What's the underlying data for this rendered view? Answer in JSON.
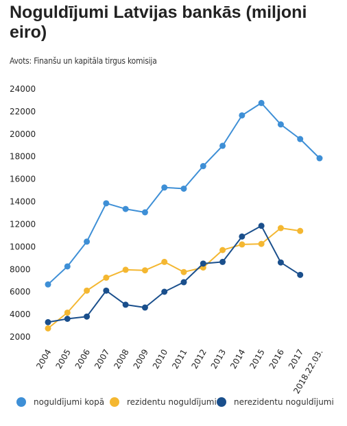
{
  "header": {
    "title": "Noguldījumi Latvijas bankās (miljoni eiro)",
    "source": "Avots: Finanšu un kapitāla tirgus komisija"
  },
  "chart_data": {
    "type": "line",
    "title": "Noguldījumi Latvijas bankās (miljoni eiro)",
    "xlabel": "",
    "ylabel": "",
    "categories": [
      "2004",
      "2005",
      "2006",
      "2007",
      "2008",
      "2009",
      "2010",
      "2011",
      "2012",
      "2013",
      "2014",
      "2015",
      "2016",
      "2017",
      "2018.22.03."
    ],
    "yticks": [
      "2000",
      "4000",
      "6000",
      "8000",
      "10000",
      "12000",
      "14000",
      "16000",
      "18000",
      "20000",
      "22000",
      "24000"
    ],
    "ylim": [
      2000,
      24000
    ],
    "grid": false,
    "legend_position": "bottom",
    "series": [
      {
        "name": "noguldījumi kopā",
        "color": "#3e8fd6",
        "values": [
          6600,
          8200,
          10400,
          13800,
          13300,
          13000,
          15200,
          15100,
          17100,
          18900,
          21600,
          22700,
          20800,
          19500,
          17800
        ]
      },
      {
        "name": "rezidentu noguldījumi",
        "color": "#f4b731",
        "values": [
          2700,
          4100,
          6050,
          7200,
          7900,
          7850,
          8600,
          7700,
          8100,
          9650,
          10150,
          10200,
          11600,
          11350,
          null
        ]
      },
      {
        "name": "nerezidentu noguldījumi",
        "color": "#1a4f8c",
        "values": [
          3250,
          3550,
          3750,
          6050,
          4800,
          4550,
          5950,
          6800,
          8450,
          8600,
          10850,
          11800,
          8550,
          7450,
          null
        ]
      }
    ]
  }
}
